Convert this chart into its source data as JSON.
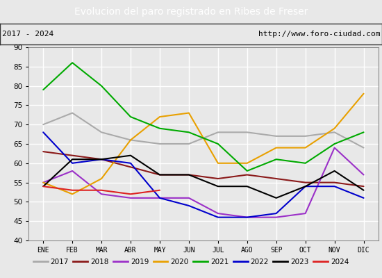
{
  "title": "Evolucion del paro registrado en Ribes de Freser",
  "subtitle_left": "2017 - 2024",
  "subtitle_right": "http://www.foro-ciudad.com",
  "title_bg_color": "#5b9bd5",
  "title_text_color": "#ffffff",
  "months": [
    "ENE",
    "FEB",
    "MAR",
    "ABR",
    "MAY",
    "JUN",
    "JUL",
    "AGO",
    "SEP",
    "OCT",
    "NOV",
    "DIC"
  ],
  "ylim": [
    40,
    90
  ],
  "yticks": [
    40,
    45,
    50,
    55,
    60,
    65,
    70,
    75,
    80,
    85,
    90
  ],
  "series": {
    "2017": {
      "color": "#aaaaaa",
      "values": [
        70,
        73,
        68,
        66,
        65,
        65,
        68,
        68,
        67,
        67,
        68,
        64
      ]
    },
    "2018": {
      "color": "#8b1a1a",
      "values": [
        63,
        62,
        61,
        59,
        57,
        57,
        56,
        57,
        56,
        55,
        55,
        54
      ]
    },
    "2019": {
      "color": "#9b30c8",
      "values": [
        55,
        58,
        52,
        51,
        51,
        51,
        47,
        46,
        46,
        47,
        64,
        57
      ]
    },
    "2020": {
      "color": "#e8a000",
      "values": [
        55,
        52,
        56,
        66,
        72,
        73,
        60,
        60,
        64,
        64,
        69,
        78
      ]
    },
    "2021": {
      "color": "#00aa00",
      "values": [
        79,
        86,
        80,
        72,
        69,
        68,
        65,
        58,
        61,
        60,
        65,
        68
      ]
    },
    "2022": {
      "color": "#0000cc",
      "values": [
        68,
        60,
        61,
        60,
        51,
        49,
        46,
        46,
        47,
        54,
        54,
        51
      ]
    },
    "2023": {
      "color": "#000000",
      "values": [
        54,
        61,
        61,
        62,
        57,
        57,
        54,
        54,
        51,
        54,
        58,
        53
      ]
    },
    "2024": {
      "color": "#dd2222",
      "values": [
        54,
        53,
        53,
        52,
        53,
        null,
        null,
        null,
        null,
        null,
        null,
        null
      ]
    }
  },
  "background_color": "#e8e8e8",
  "plot_bg_color": "#e8e8e8",
  "grid_color": "#ffffff",
  "legend_bg": "#ffffff",
  "subtitle_bg": "#e8e8e8",
  "border_color": "#555555"
}
